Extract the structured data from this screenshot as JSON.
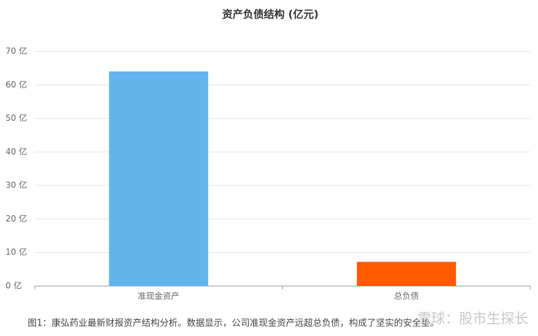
{
  "chart_data": {
    "type": "bar",
    "title": "资产负债结构 (亿元)",
    "categories": [
      "准现金资产",
      "总负债"
    ],
    "values": [
      64,
      7.2
    ],
    "colors": [
      "#63b3ed",
      "#ff5a00"
    ],
    "ylim": [
      0,
      70
    ],
    "yticks": [
      {
        "value": 0,
        "label": "0 亿"
      },
      {
        "value": 10,
        "label": "10 亿"
      },
      {
        "value": 20,
        "label": "20 亿"
      },
      {
        "value": 30,
        "label": "30 亿"
      },
      {
        "value": 40,
        "label": "40 亿"
      },
      {
        "value": 50,
        "label": "50 亿"
      },
      {
        "value": 60,
        "label": "60 亿"
      },
      {
        "value": 70,
        "label": "70 亿"
      }
    ],
    "grid": true
  },
  "caption": "图1：康弘药业最新财报资产结构分析。数据显示，公司准现金资产远超总负债，构成了坚实的安全垫。",
  "watermark": "雪球：股市生探长"
}
